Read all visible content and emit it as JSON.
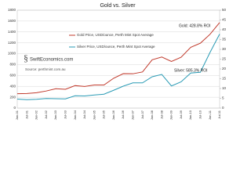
{
  "chart_data": {
    "type": "line",
    "title": "Gold vs. Silver",
    "categories": [
      "Jan-01",
      "Jul-01",
      "Jan-02",
      "Jul-02",
      "Jan-03",
      "Jul-03",
      "Jan-04",
      "Jul-04",
      "Jan-05",
      "Jul-05",
      "Jan-06",
      "Jul-06",
      "Jan-07",
      "Jul-07",
      "Jan-08",
      "Jul-08",
      "Jan-09",
      "Jul-09",
      "Jan-10",
      "Jul-10",
      "Jan-11",
      "Jul-11"
    ],
    "series": [
      {
        "name": "Gold Price, USD/ounce, Perth Mint Spot Average",
        "color": "#c0392b",
        "values": [
          265,
          268,
          282,
          314,
          356,
          346,
          413,
          398,
          424,
          424,
          549,
          633,
          631,
          665,
          889,
          939,
          858,
          934,
          1117,
          1193,
          1356,
          1572
        ]
      },
      {
        "name": "Silver Price, USD/ounce, Perth Mint Spot Average",
        "color": "#2a9bb5",
        "axis": "y2",
        "values": [
          4.6,
          4.3,
          4.5,
          4.9,
          4.8,
          4.7,
          6.3,
          6.2,
          6.7,
          7.1,
          9.1,
          11.2,
          12.9,
          12.9,
          16.0,
          17.2,
          11.3,
          13.4,
          17.9,
          18.3,
          28.4,
          37.8
        ]
      }
    ],
    "ylim": [
      0,
      1800
    ],
    "yticks": [
      0,
      200,
      400,
      600,
      800,
      1000,
      1200,
      1400,
      1600,
      1800
    ],
    "y2lim": [
      0,
      50
    ],
    "y2ticks": [
      0,
      5,
      10,
      15,
      20,
      25,
      30,
      35,
      40,
      45,
      50
    ],
    "grid": true,
    "annotations": [
      "Gold: 428.8% ROI",
      "Silver: 585.3% ROI"
    ],
    "watermark": "SwiftEconomics.com",
    "source": "Source: perthmint.com.au"
  }
}
